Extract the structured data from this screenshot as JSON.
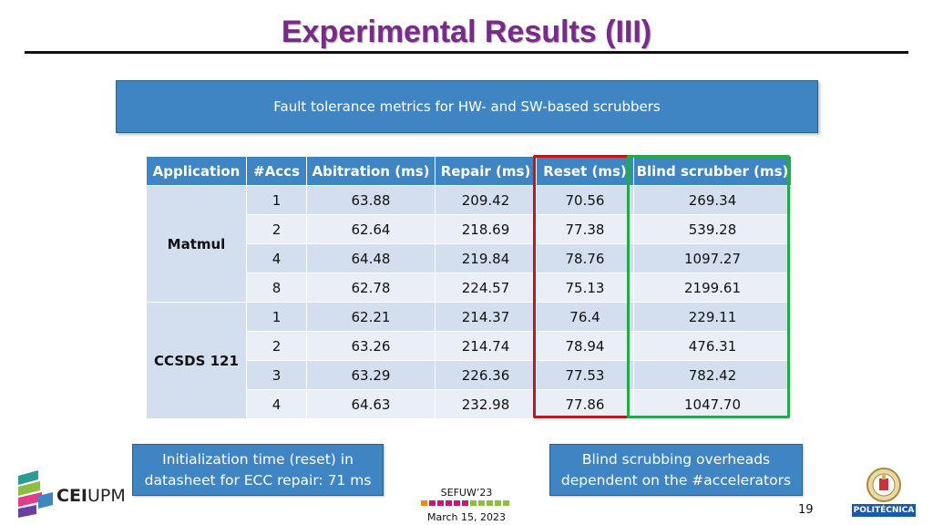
{
  "slide": {
    "title": "Experimental Results (III)",
    "banner": "Fault tolerance metrics for HW- and SW-based scrubbers"
  },
  "table": {
    "headers": [
      "Application",
      "#Accs",
      "Abitration (ms)",
      "Repair (ms)",
      "Reset (ms)",
      "Blind scrubber (ms)"
    ],
    "groups": [
      {
        "app": "Matmul",
        "rows": [
          [
            "1",
            "63.88",
            "209.42",
            "70.56",
            "269.34"
          ],
          [
            "2",
            "62.64",
            "218.69",
            "77.38",
            "539.28"
          ],
          [
            "4",
            "64.48",
            "219.84",
            "78.76",
            "1097.27"
          ],
          [
            "8",
            "62.78",
            "224.57",
            "75.13",
            "2199.61"
          ]
        ]
      },
      {
        "app": "CCSDS 121",
        "rows": [
          [
            "1",
            "62.21",
            "214.37",
            "76.4",
            "229.11"
          ],
          [
            "2",
            "63.26",
            "214.74",
            "78.94",
            "476.31"
          ],
          [
            "3",
            "63.29",
            "226.36",
            "77.53",
            "782.42"
          ],
          [
            "4",
            "64.63",
            "232.98",
            "77.86",
            "1047.70"
          ]
        ]
      }
    ]
  },
  "notes": {
    "left_line1": "Initialization time (reset) in",
    "left_line2": "datasheet for ECC repair: 71 ms",
    "right_line1": "Blind scrubbing overheads",
    "right_line2": "dependent on the #accelerators"
  },
  "footer": {
    "conference": "SEFUW’23",
    "date": "March 15, 2023",
    "page": "19",
    "logo_left_bold": "CEI",
    "logo_left_rest": "UPM",
    "logo_right": "POLITÉCNICA"
  },
  "colors": {
    "title": "#7a2a8a",
    "accent_blue": "#3f85c4",
    "reset_highlight": "#c0161c",
    "blind_highlight": "#23a84a"
  }
}
